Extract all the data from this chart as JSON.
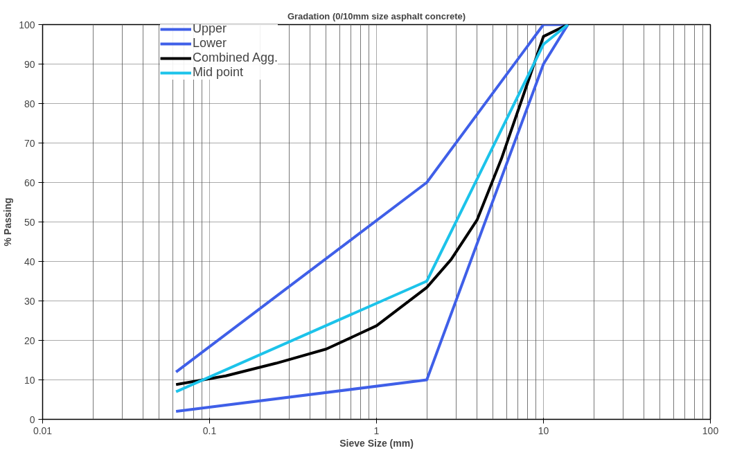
{
  "chart_data": {
    "type": "line",
    "title": "Gradation (0/10mm size asphalt concrete)",
    "xlabel": "Sieve Size (mm)",
    "ylabel": "% Passing",
    "log": "x",
    "xlim": [
      0.01,
      100
    ],
    "xticks": [
      0.01,
      0.1,
      1,
      10,
      100
    ],
    "ylim": [
      0,
      100
    ],
    "yticks": [
      0,
      10,
      20,
      30,
      40,
      50,
      60,
      70,
      80,
      90,
      100
    ],
    "grid": true,
    "legend": "top",
    "marker": "none",
    "line_style": "solid",
    "series": [
      {
        "name": "Upper",
        "color": "#3f5fe8",
        "x": [
          0.063,
          2,
          10,
          14
        ],
        "values": [
          12,
          60,
          100,
          100
        ]
      },
      {
        "name": "Lower",
        "color": "#3f5fe8",
        "x": [
          0.063,
          2,
          10,
          14
        ],
        "values": [
          2,
          10,
          90,
          100
        ]
      },
      {
        "name": "Combined Agg.",
        "color": "#000000",
        "x": [
          0.063,
          0.125,
          0.25,
          0.5,
          1,
          2,
          2.8,
          4,
          5.6,
          8,
          10,
          14
        ],
        "values": [
          8.8,
          11,
          14.2,
          17.8,
          23.7,
          33.4,
          40.5,
          50.5,
          66,
          85,
          97,
          100
        ]
      },
      {
        "name": "Mid point",
        "color": "#1cc3ea",
        "x": [
          0.063,
          2,
          10,
          14
        ],
        "values": [
          7,
          35,
          95,
          100
        ]
      }
    ]
  }
}
